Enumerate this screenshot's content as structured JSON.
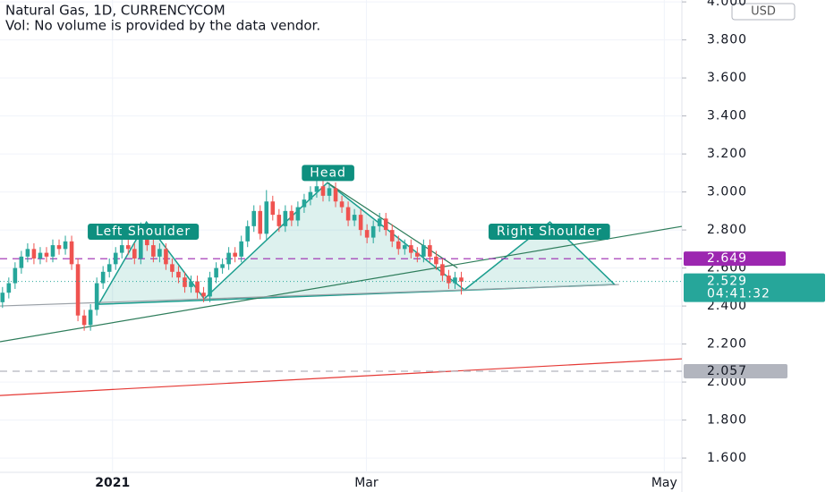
{
  "chart_data": {
    "type": "candlestick",
    "title": "Natural Gas, 1D, CURRENCYCOM",
    "subtitle": "Vol: No volume is provided by the data vendor.",
    "currency": "USD",
    "x": [
      0,
      1,
      2,
      3,
      4,
      5,
      6,
      7,
      8,
      9,
      10,
      11,
      12,
      13,
      14,
      15,
      16,
      17,
      18,
      19,
      20,
      21,
      22,
      23,
      24,
      25,
      26,
      27,
      28,
      29,
      30,
      31,
      32,
      33,
      34,
      35,
      36,
      37,
      38,
      39,
      40,
      41,
      42,
      43,
      44,
      45,
      46,
      47,
      48,
      49,
      50,
      51,
      52,
      53,
      54,
      55,
      56,
      57,
      58,
      59,
      60,
      61,
      62,
      63,
      64,
      65,
      66,
      67,
      68,
      69,
      70,
      71,
      72,
      73
    ],
    "open": [
      2.42,
      2.47,
      2.52,
      2.6,
      2.66,
      2.7,
      2.65,
      2.68,
      2.66,
      2.72,
      2.7,
      2.74,
      2.62,
      2.35,
      2.3,
      2.38,
      2.52,
      2.58,
      2.62,
      2.68,
      2.72,
      2.7,
      2.65,
      2.78,
      2.72,
      2.66,
      2.7,
      2.62,
      2.58,
      2.55,
      2.5,
      2.53,
      2.47,
      2.45,
      2.55,
      2.6,
      2.62,
      2.68,
      2.66,
      2.74,
      2.82,
      2.9,
      2.78,
      2.95,
      2.88,
      2.82,
      2.9,
      2.85,
      2.92,
      2.96,
      3.0,
      3.03,
      2.98,
      3.02,
      2.95,
      2.92,
      2.85,
      2.88,
      2.8,
      2.76,
      2.82,
      2.86,
      2.8,
      2.74,
      2.7,
      2.72,
      2.68,
      2.66,
      2.72,
      2.66,
      2.62,
      2.56,
      2.52,
      2.55
    ],
    "high": [
      2.5,
      2.55,
      2.63,
      2.69,
      2.73,
      2.73,
      2.71,
      2.71,
      2.75,
      2.75,
      2.77,
      2.77,
      2.65,
      2.38,
      2.41,
      2.55,
      2.61,
      2.65,
      2.71,
      2.75,
      2.75,
      2.73,
      2.84,
      2.81,
      2.75,
      2.73,
      2.73,
      2.65,
      2.61,
      2.58,
      2.56,
      2.56,
      2.5,
      2.58,
      2.63,
      2.65,
      2.71,
      2.71,
      2.77,
      2.85,
      2.93,
      2.93,
      3.01,
      2.98,
      2.91,
      2.93,
      2.93,
      2.95,
      2.99,
      3.03,
      3.06,
      3.06,
      3.05,
      3.05,
      2.98,
      2.95,
      2.91,
      2.91,
      2.83,
      2.85,
      2.89,
      2.89,
      2.83,
      2.77,
      2.75,
      2.75,
      2.71,
      2.75,
      2.75,
      2.69,
      2.65,
      2.59,
      2.58,
      2.58
    ],
    "low": [
      2.39,
      2.44,
      2.49,
      2.57,
      2.63,
      2.62,
      2.62,
      2.63,
      2.63,
      2.67,
      2.67,
      2.59,
      2.32,
      2.27,
      2.27,
      2.35,
      2.49,
      2.55,
      2.59,
      2.65,
      2.67,
      2.62,
      2.62,
      2.69,
      2.63,
      2.63,
      2.59,
      2.55,
      2.52,
      2.47,
      2.47,
      2.44,
      2.42,
      2.42,
      2.52,
      2.57,
      2.59,
      2.63,
      2.63,
      2.71,
      2.79,
      2.75,
      2.75,
      2.85,
      2.79,
      2.79,
      2.82,
      2.82,
      2.89,
      2.93,
      2.97,
      2.95,
      2.95,
      2.92,
      2.89,
      2.82,
      2.82,
      2.77,
      2.73,
      2.73,
      2.79,
      2.77,
      2.71,
      2.67,
      2.67,
      2.65,
      2.63,
      2.63,
      2.63,
      2.59,
      2.53,
      2.49,
      2.49,
      2.46
    ],
    "close": [
      2.47,
      2.52,
      2.6,
      2.66,
      2.7,
      2.65,
      2.68,
      2.66,
      2.72,
      2.7,
      2.74,
      2.62,
      2.35,
      2.3,
      2.38,
      2.52,
      2.58,
      2.62,
      2.68,
      2.72,
      2.7,
      2.65,
      2.78,
      2.72,
      2.66,
      2.7,
      2.62,
      2.58,
      2.55,
      2.5,
      2.53,
      2.47,
      2.45,
      2.55,
      2.6,
      2.62,
      2.68,
      2.66,
      2.74,
      2.82,
      2.9,
      2.78,
      2.95,
      2.88,
      2.82,
      2.9,
      2.85,
      2.92,
      2.96,
      3.0,
      3.03,
      2.98,
      3.02,
      2.95,
      2.92,
      2.85,
      2.88,
      2.8,
      2.76,
      2.82,
      2.86,
      2.8,
      2.74,
      2.7,
      2.72,
      2.68,
      2.66,
      2.72,
      2.66,
      2.62,
      2.56,
      2.52,
      2.55,
      2.529
    ],
    "up_color": "#26a69a",
    "down_color": "#ef5350",
    "xlim": [
      -0.4,
      108.1
    ],
    "xticks": [
      {
        "value": 17.5,
        "label": "2021"
      },
      {
        "value": 57.9,
        "label": "Mar"
      },
      {
        "value": 105.3,
        "label": "May"
      }
    ],
    "ylim": [
      1.525,
      4.01
    ],
    "yticks": [
      {
        "value": 1.6,
        "label": "1.600"
      },
      {
        "value": 1.8,
        "label": "1.800"
      },
      {
        "value": 2,
        "label": "2.000"
      },
      {
        "value": 2.2,
        "label": "2.200"
      },
      {
        "value": 2.4,
        "label": "2.400"
      },
      {
        "value": 2.6,
        "label": "2.600"
      },
      {
        "value": 2.8,
        "label": "2.800"
      },
      {
        "value": 3,
        "label": "3.000"
      },
      {
        "value": 3.2,
        "label": "3.200"
      },
      {
        "value": 3.4,
        "label": "3.400"
      },
      {
        "value": 3.6,
        "label": "3.600"
      },
      {
        "value": 3.8,
        "label": "3.800"
      },
      {
        "value": 4,
        "label": "4.000"
      }
    ],
    "grid": true,
    "price_lines": [
      {
        "value": 2.649,
        "label": "2.649",
        "color": "#9c27b0"
      },
      {
        "value": 2.057,
        "label": "2.057",
        "color": "#b2b5be"
      }
    ],
    "last_price": {
      "value": 2.529,
      "label": "2.529",
      "countdown": "04:41:32",
      "color": "#26a69a"
    },
    "pattern": {
      "color": "#1b9e8f",
      "x": [
        15.3,
        22.9,
        32.1,
        51.7,
        73.5,
        87.1,
        97.4
      ],
      "y": [
        2.409,
        2.842,
        2.438,
        3.049,
        2.485,
        2.842,
        2.513
      ]
    },
    "trendlines": [
      {
        "color": "#2e7d5b",
        "x": [
          -0.4,
          108.1
        ],
        "y": [
          2.212,
          2.819
        ]
      },
      {
        "color": "#2e7d5b",
        "x": [
          51.7,
          72.4
        ],
        "y": [
          3.049,
          2.6
        ]
      },
      {
        "color": "#9aa0a6",
        "x": [
          -0.4,
          98.1
        ],
        "y": [
          2.4,
          2.513
        ]
      },
      {
        "color": "#e53935",
        "x": [
          -0.4,
          108.1
        ],
        "y": [
          1.929,
          2.122
        ]
      }
    ],
    "annotations": [
      {
        "text": "Left Shoulder",
        "x": 22.4,
        "y": 2.791
      },
      {
        "text": "Head",
        "x": 51.8,
        "y": 3.1
      },
      {
        "text": "Right Shoulder",
        "x": 87.0,
        "y": 2.791
      }
    ]
  }
}
